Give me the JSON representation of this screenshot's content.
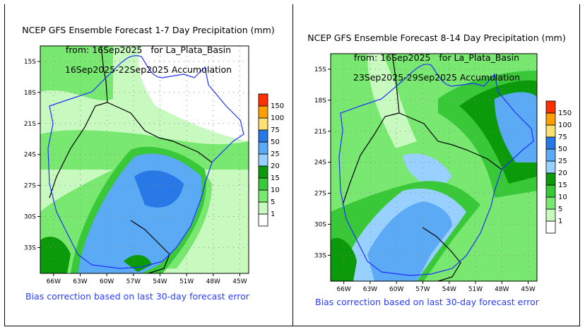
{
  "colorbar": {
    "levels": [
      "1",
      "5",
      "10",
      "15",
      "20",
      "25",
      "50",
      "75",
      "100",
      "150"
    ],
    "colors": [
      "#ffffff",
      "#c8fac0",
      "#78e870",
      "#38c838",
      "#0a9a0a",
      "#98d0ff",
      "#5aaaf5",
      "#2878e8",
      "#fce170",
      "#ffa000",
      "#ff3000"
    ]
  },
  "chart_data": [
    {
      "type": "heatmap",
      "title": "NCEP GFS Ensemble Forecast 1-7 Day Precipitation (mm)",
      "subtitle1": "from: 16Sep2025   for La_Plata_Basin",
      "subtitle2": "16Sep2025-22Sep2025 Accumulation",
      "lat_ticks": [
        "15S",
        "18S",
        "21S",
        "24S",
        "27S",
        "30S",
        "33S"
      ],
      "lon_ticks": [
        "66W",
        "63W",
        "60W",
        "57W",
        "54W",
        "51W",
        "48W",
        "45W"
      ],
      "xlim": [
        -67.5,
        -44
      ],
      "ylim": [
        -35.5,
        -13.5
      ],
      "note": "Bias correction based on last 30-day forecast error"
    },
    {
      "type": "heatmap",
      "title": "NCEP GFS Ensemble Forecast 8-14 Day Precipitation (mm)",
      "subtitle1": "from: 16Sep2025   for La_Plata_Basin",
      "subtitle2": "23Sep2025-29Sep2025 Accumulation",
      "lat_ticks": [
        "15S",
        "18S",
        "21S",
        "24S",
        "27S",
        "30S",
        "33S"
      ],
      "lon_ticks": [
        "66W",
        "63W",
        "60W",
        "57W",
        "54W",
        "51W",
        "48W",
        "45W"
      ],
      "xlim": [
        -67.5,
        -44
      ],
      "ylim": [
        -35.5,
        -13.5
      ],
      "note": "Bias correction based on last 30-day forecast error"
    }
  ]
}
